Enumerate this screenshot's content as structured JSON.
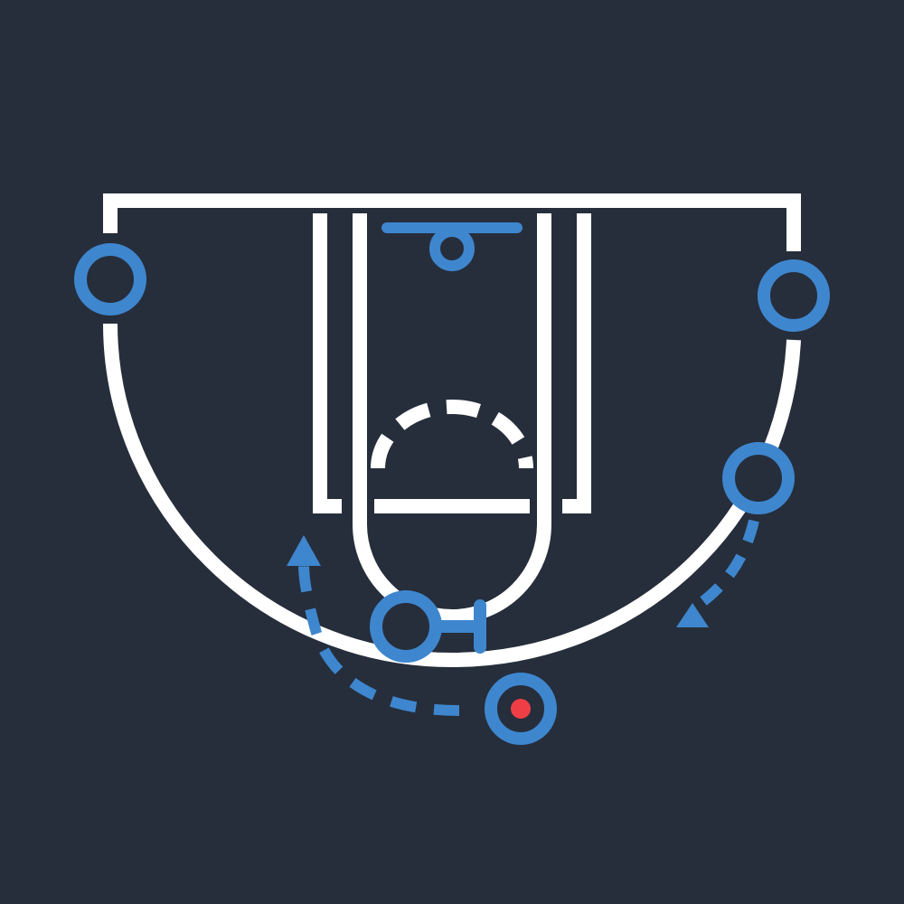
{
  "theme": {
    "background": "#262e3b",
    "court_line": "#ffffff",
    "player": "#3e86ce",
    "ball": "#ef3e45"
  },
  "play": {
    "players": [
      {
        "id": "left-corner",
        "role": "offense"
      },
      {
        "id": "right-corner",
        "role": "offense"
      },
      {
        "id": "right-wing",
        "role": "offense"
      },
      {
        "id": "screener",
        "role": "offense",
        "action": "screen"
      },
      {
        "id": "ball-handler",
        "role": "offense",
        "has_ball": true
      }
    ],
    "movements": [
      {
        "from": "ball-handler",
        "style": "dashed-arrow",
        "meaning": "cut"
      },
      {
        "from": "right-wing",
        "style": "dashed-arrow",
        "meaning": "cut"
      }
    ],
    "hoop_icon": "basketball-hoop-icon",
    "screen_icon": "screen-marker-icon"
  }
}
